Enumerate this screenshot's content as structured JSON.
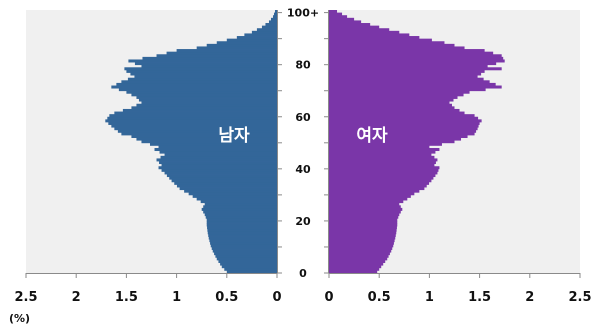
{
  "chart_data": {
    "type": "population-pyramid",
    "unit_label": "(%)",
    "age_axis": {
      "range": [
        0,
        101
      ],
      "ticks": [
        0,
        20,
        40,
        60,
        80,
        100
      ],
      "tick_labels": [
        "0",
        "20",
        "40",
        "60",
        "80",
        "100+"
      ]
    },
    "x_axis_male": {
      "range": [
        0,
        2.5
      ],
      "reversed": true,
      "ticks": [
        0,
        0.5,
        1,
        1.5,
        2,
        2.5
      ],
      "tick_labels": [
        "0",
        "0.5",
        "1",
        "1.5",
        "2",
        "2.5"
      ]
    },
    "x_axis_female": {
      "range": [
        0,
        2.5
      ],
      "ticks": [
        0,
        0.5,
        1,
        1.5,
        2,
        2.5
      ],
      "tick_labels": [
        "0",
        "0.5",
        "1",
        "1.5",
        "2",
        "2.5"
      ]
    },
    "series": [
      {
        "name": "남자",
        "color": "#336699",
        "ages": [
          0,
          2,
          5,
          8,
          10,
          13,
          15,
          18,
          20,
          22,
          24,
          26,
          28,
          30,
          32,
          35,
          38,
          40,
          41,
          43,
          45,
          47,
          48,
          50,
          52,
          53,
          55,
          57,
          58,
          60,
          61,
          63,
          65,
          67,
          69,
          71,
          73,
          75,
          77,
          78,
          79,
          81,
          83,
          85,
          86,
          88,
          90,
          92,
          94,
          96,
          98,
          100
        ],
        "values": [
          0.5,
          0.55,
          0.6,
          0.64,
          0.66,
          0.68,
          0.69,
          0.7,
          0.7,
          0.72,
          0.75,
          0.72,
          0.8,
          0.88,
          0.97,
          1.05,
          1.12,
          1.18,
          1.15,
          1.2,
          1.12,
          1.22,
          1.18,
          1.35,
          1.45,
          1.55,
          1.62,
          1.68,
          1.71,
          1.67,
          1.62,
          1.45,
          1.35,
          1.4,
          1.5,
          1.65,
          1.55,
          1.42,
          1.5,
          1.52,
          1.35,
          1.48,
          1.2,
          1.0,
          0.8,
          0.6,
          0.4,
          0.25,
          0.15,
          0.08,
          0.04,
          0.02
        ]
      },
      {
        "name": "여자",
        "color": "#7a36a8",
        "ages": [
          0,
          2,
          5,
          8,
          10,
          13,
          15,
          18,
          20,
          22,
          24,
          26,
          28,
          30,
          32,
          35,
          38,
          40,
          41,
          43,
          45,
          47,
          48,
          50,
          52,
          53,
          55,
          57,
          58,
          60,
          61,
          63,
          65,
          67,
          69,
          71,
          73,
          75,
          77,
          78,
          79,
          81,
          83,
          85,
          86,
          88,
          90,
          92,
          94,
          96,
          98,
          100
        ],
        "values": [
          0.48,
          0.52,
          0.58,
          0.62,
          0.64,
          0.66,
          0.67,
          0.68,
          0.68,
          0.7,
          0.73,
          0.7,
          0.78,
          0.85,
          0.95,
          1.02,
          1.08,
          1.1,
          1.05,
          1.08,
          1.02,
          1.1,
          1.0,
          1.25,
          1.38,
          1.45,
          1.48,
          1.5,
          1.52,
          1.45,
          1.35,
          1.25,
          1.2,
          1.28,
          1.4,
          1.72,
          1.6,
          1.48,
          1.55,
          1.72,
          1.58,
          1.75,
          1.72,
          1.55,
          1.35,
          1.15,
          0.9,
          0.7,
          0.5,
          0.32,
          0.18,
          0.08
        ]
      }
    ]
  }
}
